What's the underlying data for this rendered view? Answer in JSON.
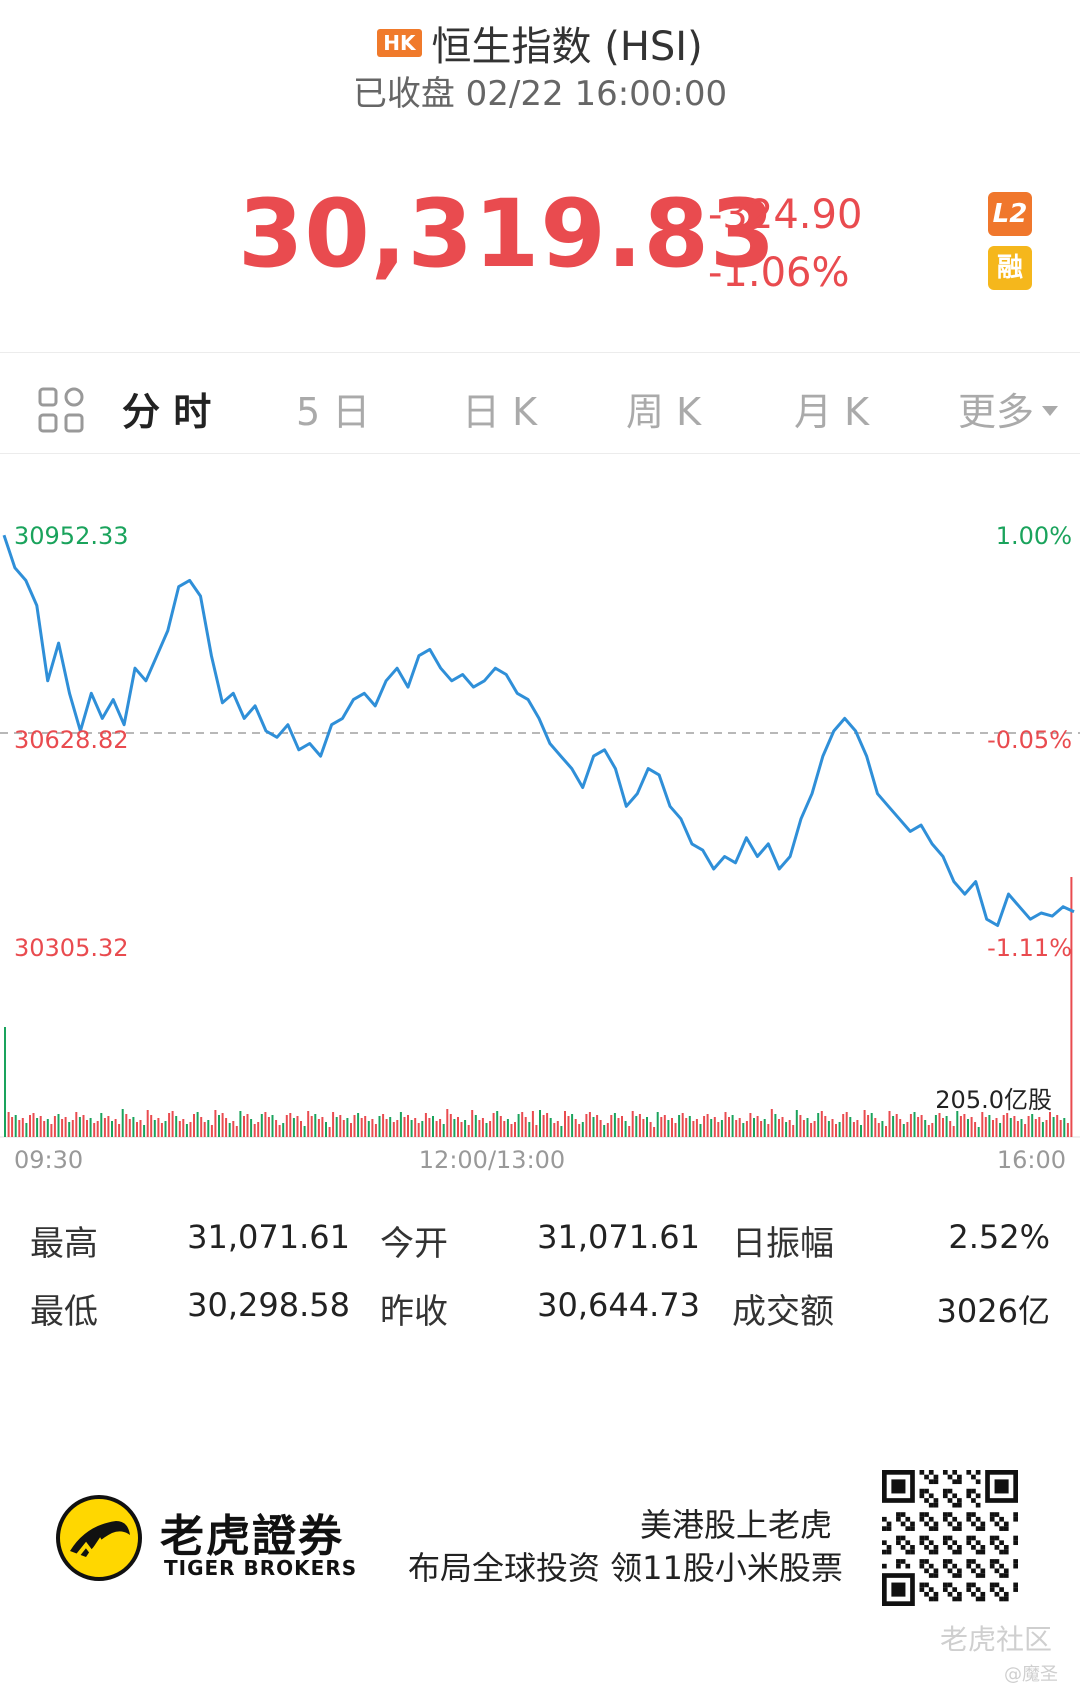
{
  "header": {
    "market_badge": "HK",
    "title": "恒生指数 (HSI)",
    "status": "已收盘 02/22 16:00:00",
    "price": "30,319.83",
    "change": "-324.90",
    "change_pct": "-1.06%",
    "tag_l2": "L2",
    "tag_margin": "融"
  },
  "tabs": [
    {
      "label": "分 时",
      "active": true
    },
    {
      "label": "5 日",
      "active": false
    },
    {
      "label": "日 K",
      "active": false
    },
    {
      "label": "周 K",
      "active": false
    },
    {
      "label": "月 K",
      "active": false
    },
    {
      "label": "更多",
      "active": false
    }
  ],
  "colors": {
    "up_green": "#1aa35c",
    "down_red": "#e94b4f",
    "line_blue": "#2f8fd8"
  },
  "chart_data": {
    "type": "line",
    "y_left_ticks": [
      "30952.33",
      "30628.82",
      "30305.32"
    ],
    "y_right_ticks": [
      "1.00%",
      "-0.05%",
      "-1.11%"
    ],
    "x_ticks": [
      "09:30",
      "12:00/13:00",
      "16:00"
    ],
    "ylim": [
      30305.32,
      30952.33
    ],
    "prev_close": 30644.73,
    "volume_label": "205.0亿股",
    "series": [
      {
        "values": [
          30952,
          30900,
          30880,
          30840,
          30720,
          30780,
          30700,
          30640,
          30700,
          30660,
          30690,
          30650,
          30740,
          30720,
          30760,
          30800,
          30870,
          30880,
          30855,
          30760,
          30685,
          30700,
          30660,
          30680,
          30640,
          30630,
          30650,
          30610,
          30620,
          30600,
          30650,
          30660,
          30690,
          30700,
          30680,
          30720,
          30740,
          30710,
          30760,
          30770,
          30740,
          30720,
          30730,
          30710,
          30720,
          30740,
          30730,
          30700,
          30690,
          30660,
          30620,
          30600,
          30580,
          30550,
          30600,
          30610,
          30580,
          30520,
          30540,
          30580,
          30570,
          30520,
          30500,
          30460,
          30450,
          30420,
          30440,
          30430,
          30470,
          30440,
          30460,
          30420,
          30440,
          30500,
          30540,
          30600,
          30640,
          30660,
          30640,
          30600,
          30540,
          30520,
          30500,
          30480,
          30490,
          30460,
          30440,
          30400,
          30380,
          30400,
          30340,
          30330,
          30380,
          30360,
          30340,
          30350,
          30345,
          30360,
          30352
        ]
      }
    ]
  },
  "stats": [
    {
      "label": "最高",
      "value": "31,071.61"
    },
    {
      "label": "今开",
      "value": "31,071.61"
    },
    {
      "label": "日振幅",
      "value": "2.52%"
    },
    {
      "label": "最低",
      "value": "30,298.58"
    },
    {
      "label": "昨收",
      "value": "30,644.73"
    },
    {
      "label": "成交额",
      "value": "3026亿"
    }
  ],
  "footer": {
    "brand_cn": "老虎證券",
    "brand_en": "TIGER BROKERS",
    "slogan_line1": "美港股上老虎",
    "slogan_line2": "布局全球投资 领11股小米股票",
    "watermark": "老虎社区",
    "watermark_user": "@魔圣"
  }
}
